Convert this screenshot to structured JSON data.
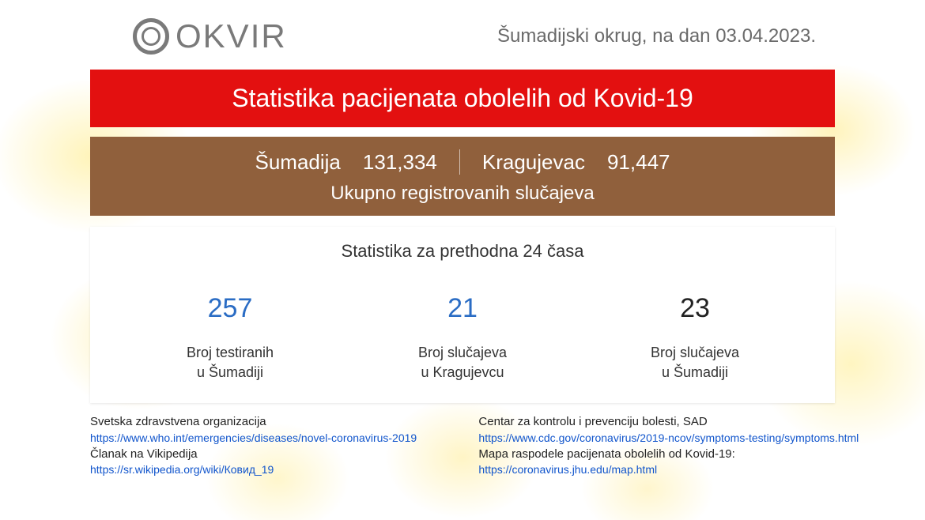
{
  "logo": {
    "text": "OKVIR"
  },
  "header": {
    "region_prefix": "Šumadijski okrug, na dan",
    "date": "03.04.2023."
  },
  "banner": {
    "title": "Statistika pacijenata obolelih od Kovid-19",
    "bg_color": "#e31010",
    "text_color": "#ffffff"
  },
  "totals": {
    "region1_label": "Šumadija",
    "region1_value": "131,334",
    "region2_label": "Kragujevac",
    "region2_value": "91,447",
    "subtitle": "Ukupno registrovanih slučajeva",
    "bg_color": "#90603c",
    "text_color": "#ffffff"
  },
  "daily": {
    "title": "Statistika za prethodna 24 časa",
    "stats": [
      {
        "value": "257",
        "value_color": "#2a6cc4",
        "line1": "Broj testiranih",
        "line2": "u Šumadiji"
      },
      {
        "value": "21",
        "value_color": "#2a6cc4",
        "line1": "Broj slučajeva",
        "line2": "u Kragujevcu"
      },
      {
        "value": "23",
        "value_color": "#222222",
        "line1": "Broj slučajeva",
        "line2": "u Šumadiji"
      }
    ]
  },
  "footer": {
    "left": {
      "label1": "Svetska zdravstvena organizacija",
      "link1": "https://www.who.int/emergencies/diseases/novel-coronavirus-2019",
      "label2": "Članak na Vikipedija",
      "link2": "https://sr.wikipedia.org/wiki/Ковид_19"
    },
    "right": {
      "label1": "Centar za kontrolu i prevenciju bolesti, SAD",
      "link1": "https://www.cdc.gov/coronavirus/2019-ncov/symptoms-testing/symptoms.html",
      "label2": "Mapa raspodele pacijenata obolelih od Kovid-19:",
      "link2": "https://coronavirus.jhu.edu/map.html"
    }
  },
  "colors": {
    "link": "#1155cc",
    "logo_gray": "#7a7a7a",
    "header_gray": "#6a6a6a"
  }
}
